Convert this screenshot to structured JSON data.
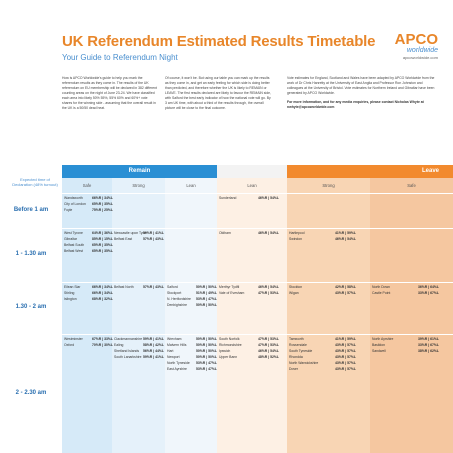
{
  "header": {
    "title": "UK Referendum Estimated Results Timetable",
    "subtitle": "Your Guide to Referendum Night"
  },
  "logo": {
    "main": "APCO",
    "sub": "worldwide",
    "url": "apcoworldwide.com"
  },
  "intro": {
    "col1": "How is APCO Worldwide's guide to help you mark the referendum results as they come in. The results of the UK referendum on EU membership will be declared in 382 different counting areas on the night of June 23-24. We have classified each area into likely 50% 55%, 55% 60% and 60%+ vote shares for the winning side - assuming that the overall result in the UK is a 50/50 dead heat.",
    "col2": "Of course, it won't be. But using our table you can mark up the results as they come in, and get an early feeling for which side is doing better than predicted, and therefore whether the UK is likely to REMAIN or LEAVE. The first results declared are likely to favour the REMAIN side, with Salford the best early indicator of how the national vote will go. By 3 am UK time, with about a third of the results through, the overall picture will be close to the final outcome.",
    "col3": "Vote estimates for England, Scotland and Wales have been adapted by APCO Worldwide from the work of Dr Chris Hanretty at the University of East Anglia and Professor Ron Johnston and colleagues at the University of Bristol. Vote estimates for Northern Ireland and Gibraltar have been generated by APCO Worldwide.",
    "col3_bold": "For more information, and for any media enquiries, please contact Nicholas Whyte at nwhyte@apcoworldwide.com"
  },
  "sides": {
    "remain": "Remain",
    "leave": "Leave"
  },
  "bands": [
    "Safe",
    "Strong",
    "Lean",
    "Lean",
    "Strong",
    "Safe"
  ],
  "turnout_label": "Expected time of Declaration (48% turnout)",
  "rows": [
    {
      "time": "Before 1 am",
      "cells": [
        [
          [
            "Wandsworth",
            "66%R | 34%L"
          ],
          [
            "City of London",
            "65%R | 35%L"
          ],
          [
            "Foyle",
            "75%R | 25%L"
          ]
        ],
        [],
        [],
        [
          [
            "Sunderland",
            "46%R | 54%L"
          ]
        ],
        [],
        []
      ]
    },
    {
      "time": "1 - 1.30 am",
      "cells": [
        [
          [
            "West Tyrone",
            "64%R | 36%L"
          ],
          [
            "Gibraltar",
            "85%R | 15%L"
          ],
          [
            "Belfast South",
            "65%R | 35%L"
          ],
          [
            "Belfast West",
            "65%R | 35%L"
          ]
        ],
        [
          [
            "Newcastle upon Tyne",
            "59%R | 41%L"
          ],
          [
            "Belfast East",
            "57%R | 43%L"
          ]
        ],
        [],
        [
          [
            "Oldham",
            "46%R | 54%L"
          ]
        ],
        [
          [
            "Hartlepool",
            "41%R | 59%L"
          ],
          [
            "Swindon",
            "46%R | 54%L"
          ]
        ],
        []
      ]
    },
    {
      "time": "1.30 - 2 am",
      "cells": [
        [
          [
            "Eilean Siar",
            "66%R | 34%L"
          ],
          [
            "Stirling",
            "66%R | 34%L"
          ],
          [
            "Islington",
            "68%R | 32%L"
          ]
        ],
        [
          [
            "Belfast North",
            "57%R | 43%L"
          ]
        ],
        [
          [
            "Salford",
            "50%R | 50%L"
          ],
          [
            "Stockport",
            "51%R | 49%L"
          ],
          [
            "N. Hertfordshire",
            "53%R | 47%L"
          ],
          [
            "Denbighshire",
            "50%R | 50%L"
          ]
        ],
        [
          [
            "Merthyr Tydfil",
            "46%R | 54%L"
          ],
          [
            "Vale of Evesham",
            "47%R | 53%L"
          ]
        ],
        [
          [
            "Stockton",
            "42%R | 58%L"
          ],
          [
            "Wigan",
            "43%R | 57%L"
          ]
        ],
        [
          [
            "North Down",
            "36%R | 64%L"
          ],
          [
            "Castle Point",
            "33%R | 67%L"
          ]
        ]
      ]
    },
    {
      "time": "2 - 2.30 am",
      "cells": [
        [
          [
            "Westminster",
            "67%R | 33%L"
          ],
          [
            "Oxford",
            "70%R | 30%L"
          ]
        ],
        [
          [
            "Clackmannanshire",
            "59%R | 41%L"
          ],
          [
            "Ealing",
            "58%R | 42%L"
          ],
          [
            "Shetland Islands",
            "56%R | 44%L"
          ],
          [
            "South Lanarkshire",
            "59%R | 41%L"
          ]
        ],
        [
          [
            "Wrexham",
            "50%R | 50%L"
          ],
          [
            "Malvern Hills",
            "50%R | 50%L"
          ],
          [
            "Hart",
            "50%R | 50%L"
          ],
          [
            "Newport",
            "50%R | 50%L"
          ],
          [
            "North Tyneside",
            "53%R | 47%L"
          ],
          [
            "East Ayrshire",
            "53%R | 47%L"
          ]
        ],
        [
          [
            "South Norfolk",
            "47%R | 53%L"
          ],
          [
            "Richmondshire",
            "47%R | 53%L"
          ],
          [
            "Ipswich",
            "46%R | 54%L"
          ],
          [
            "Upper Bann",
            "48%R | 52%L"
          ]
        ],
        [
          [
            "Tamworth",
            "41%R | 59%L"
          ],
          [
            "Rossendale",
            "43%R | 57%L"
          ],
          [
            "South Tyneside",
            "43%R | 57%L"
          ],
          [
            "Rhondda",
            "43%R | 57%L"
          ],
          [
            "North Warwickshire",
            "43%R | 57%L"
          ],
          [
            "Dover",
            "43%R | 57%L"
          ]
        ],
        [
          [
            "North Ayrshire",
            "39%R | 61%L"
          ],
          [
            "Basildon",
            "33%R | 67%L"
          ],
          [
            "Sandwell",
            "38%R | 62%L"
          ]
        ]
      ]
    }
  ]
}
